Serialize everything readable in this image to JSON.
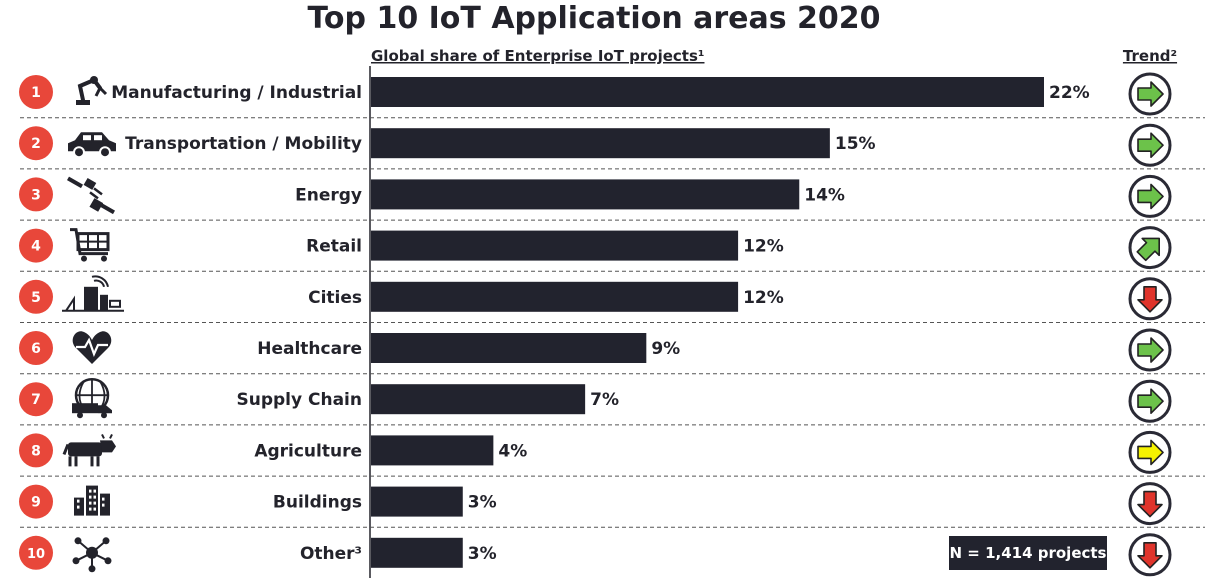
{
  "chart_data": {
    "type": "bar",
    "orientation": "horizontal",
    "title": "Top 10 IoT Application areas 2020",
    "subtitle": "Global share of Enterprise IoT projects¹",
    "trend_header": "Trend²",
    "categories": [
      "Manufacturing / Industrial",
      "Transportation / Mobility",
      "Energy",
      "Retail",
      "Cities",
      "Healthcare",
      "Supply Chain",
      "Agriculture",
      "Buildings",
      "Other³"
    ],
    "ranks": [
      "1",
      "2",
      "3",
      "4",
      "5",
      "6",
      "7",
      "8",
      "9",
      "10"
    ],
    "values": [
      22,
      15,
      14,
      12,
      12,
      9,
      7,
      4,
      3,
      3
    ],
    "value_labels": [
      "22%",
      "15%",
      "14%",
      "12%",
      "12%",
      "9%",
      "7%",
      "4%",
      "3%",
      "3%"
    ],
    "trend": [
      "right",
      "right",
      "right",
      "up-right",
      "down",
      "right",
      "right",
      "right",
      "down",
      "down"
    ],
    "trend_colors": [
      "#6cc24a",
      "#6cc24a",
      "#6cc24a",
      "#6cc24a",
      "#e0342b",
      "#6cc24a",
      "#6cc24a",
      "#f5f200",
      "#e0342b",
      "#e0342b"
    ],
    "icons": [
      "robot-arm-icon",
      "car-icon",
      "plug-icon",
      "shopping-cart-icon",
      "city-icon",
      "heart-pulse-icon",
      "globe-truck-icon",
      "cow-icon",
      "buildings-icon",
      "network-icon"
    ],
    "xlim": [
      0,
      22
    ],
    "colors": {
      "bar": "#22232e",
      "rank_badge": "#e8473a",
      "trend_ring": "#2a2a35"
    }
  },
  "sample_note": "N = 1,414 projects"
}
